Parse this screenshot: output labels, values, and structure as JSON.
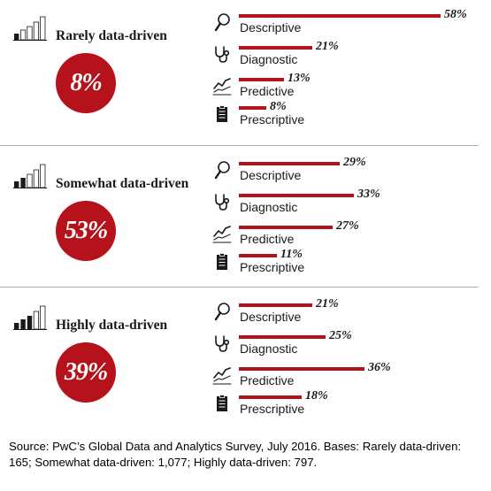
{
  "source_note": "Source: PwC’s Global Data and Analytics Survey, July 2016. Bases: Rarely data-driven: 165; Somewhat data-driven: 1,077; Highly data-driven: 797.",
  "colors": {
    "accent": "#b5121b",
    "text": "#1a1a1a",
    "divider": "#b3b3b3"
  },
  "icons": {
    "segment": "bar-chart-icon",
    "descriptive": "magnifier-icon",
    "diagnostic": "stethoscope-icon",
    "predictive": "trend-line-icon",
    "prescriptive": "clipboard-icon"
  },
  "chart_data": {
    "type": "bar",
    "categories": [
      "Descriptive",
      "Diagnostic",
      "Predictive",
      "Prescriptive"
    ],
    "xlim": [
      0,
      60
    ],
    "segments": [
      {
        "name": "Rarely data-driven",
        "share": 8,
        "share_label": "8%",
        "bar_levels": 1,
        "values": [
          58,
          21,
          13,
          8
        ],
        "value_labels": [
          "58%",
          "21%",
          "13%",
          "8%"
        ]
      },
      {
        "name": "Somewhat data-driven",
        "share": 53,
        "share_label": "53%",
        "bar_levels": 2,
        "values": [
          29,
          33,
          27,
          11
        ],
        "value_labels": [
          "29%",
          "33%",
          "27%",
          "11%"
        ]
      },
      {
        "name": "Highly data-driven",
        "share": 39,
        "share_label": "39%",
        "bar_levels": 3,
        "values": [
          21,
          25,
          36,
          18
        ],
        "value_labels": [
          "21%",
          "25%",
          "36%",
          "18%"
        ]
      }
    ]
  }
}
